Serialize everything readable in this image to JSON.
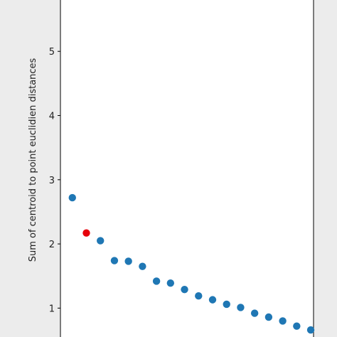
{
  "chart_data": {
    "type": "scatter",
    "title": "",
    "xlabel": "",
    "ylabel": "Sum of centroid to point euclidien distances",
    "ylim": [
      0.55,
      5.8
    ],
    "xlim": [
      1.15,
      19.2
    ],
    "yticks": [
      1,
      2,
      3,
      4,
      5
    ],
    "ytick_labels": [
      "1",
      "2",
      "3",
      "4",
      "5"
    ],
    "grid": false,
    "colors": {
      "points": "#1f77b4",
      "highlight": "#e6000a",
      "axes": "#000000",
      "background": "#ececec",
      "plot_area": "#ffffff"
    },
    "series": [
      {
        "x": [
          2,
          3,
          4,
          5,
          6,
          7,
          8,
          9,
          10,
          11,
          12,
          13,
          14,
          15,
          16,
          17,
          18,
          19
        ],
        "values": [
          2.72,
          2.17,
          2.05,
          1.74,
          1.73,
          1.65,
          1.42,
          1.39,
          1.29,
          1.19,
          1.13,
          1.06,
          1.01,
          0.92,
          0.86,
          0.8,
          0.72,
          0.66
        ]
      }
    ],
    "highlight_index": 1
  }
}
